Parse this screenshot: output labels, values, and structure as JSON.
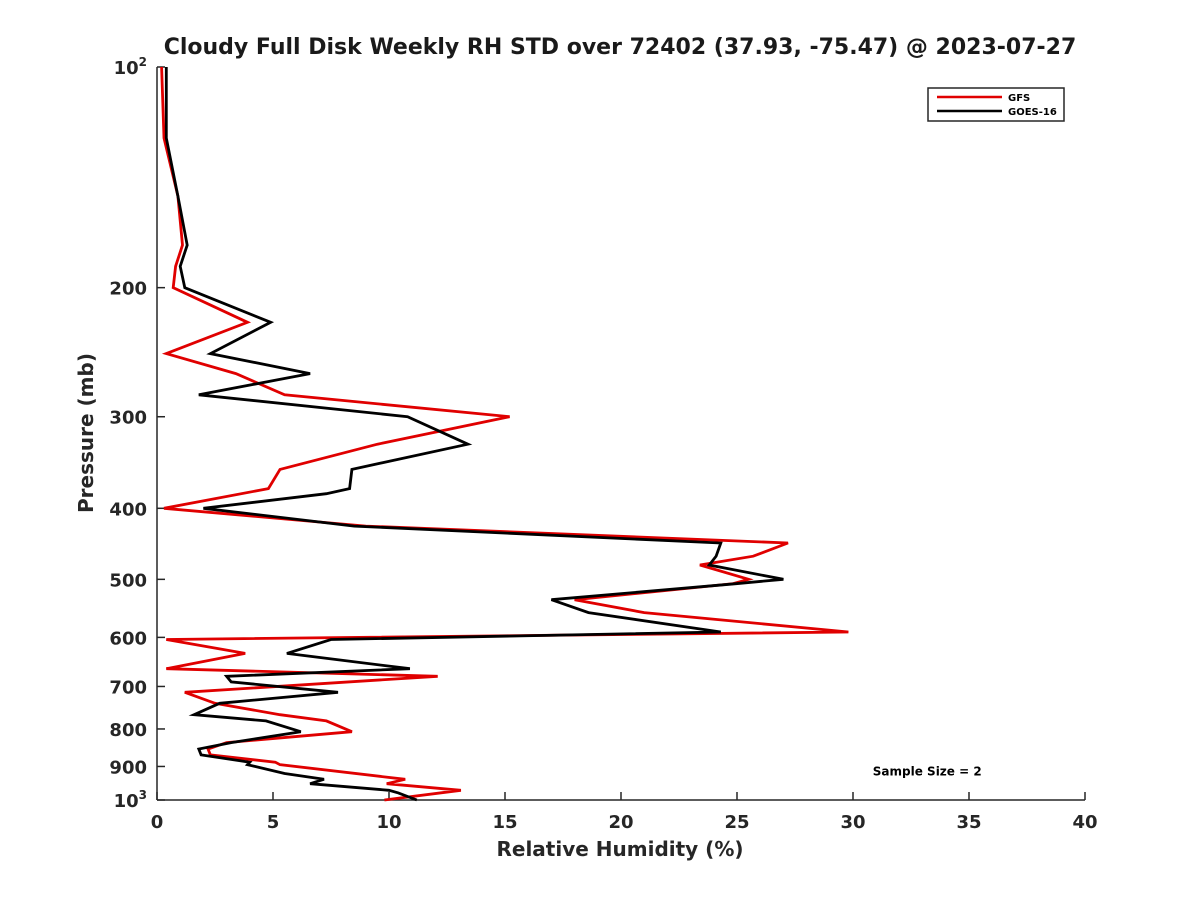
{
  "chart_data": {
    "type": "line",
    "title": "Cloudy Full Disk Weekly RH STD over 72402 (37.93, -75.47) @ 2023-07-27",
    "xlabel": "Relative Humidity (%)",
    "ylabel": "Pressure (mb)",
    "xlim": [
      0,
      40
    ],
    "ylim": [
      100,
      1000
    ],
    "y_scale": "log",
    "y_reversed": true,
    "x_ticks": [
      0,
      5,
      10,
      15,
      20,
      25,
      30,
      35,
      40
    ],
    "y_ticks": [
      {
        "value": 100,
        "base": "10",
        "exp": "2"
      },
      {
        "value": 200,
        "label": "200"
      },
      {
        "value": 300,
        "label": "300"
      },
      {
        "value": 400,
        "label": "400"
      },
      {
        "value": 500,
        "label": "500"
      },
      {
        "value": 600,
        "label": "600"
      },
      {
        "value": 700,
        "label": "700"
      },
      {
        "value": 800,
        "label": "800"
      },
      {
        "value": 900,
        "label": "900"
      },
      {
        "value": 1000,
        "base": "10",
        "exp": "3"
      }
    ],
    "legend_position": "top-right",
    "grid": false,
    "series": [
      {
        "name": "GFS",
        "color": "#e00000",
        "points": [
          [
            0.2,
            100
          ],
          [
            0.3,
            125
          ],
          [
            0.9,
            150
          ],
          [
            1.1,
            175
          ],
          [
            0.8,
            187
          ],
          [
            0.7,
            200
          ],
          [
            3.9,
            223
          ],
          [
            0.4,
            246
          ],
          [
            3.4,
            262
          ],
          [
            5.5,
            280
          ],
          [
            15.2,
            300
          ],
          [
            9.5,
            327
          ],
          [
            5.3,
            354
          ],
          [
            4.8,
            376
          ],
          [
            0.3,
            400
          ],
          [
            9.0,
            423
          ],
          [
            27.2,
            446
          ],
          [
            25.7,
            465
          ],
          [
            23.4,
            478
          ],
          [
            25.5,
            500
          ],
          [
            24.8,
            507
          ],
          [
            18.0,
            533
          ],
          [
            21.0,
            555
          ],
          [
            29.8,
            590
          ],
          [
            0.4,
            604
          ],
          [
            3.8,
            631
          ],
          [
            0.4,
            662
          ],
          [
            12.1,
            678
          ],
          [
            1.2,
            713
          ],
          [
            2.5,
            738
          ],
          [
            5.3,
            765
          ],
          [
            7.3,
            780
          ],
          [
            8.4,
            807
          ],
          [
            3.0,
            835
          ],
          [
            2.2,
            852
          ],
          [
            2.3,
            868
          ],
          [
            5.1,
            888
          ],
          [
            5.3,
            895
          ],
          [
            10.7,
            937
          ],
          [
            9.9,
            950
          ],
          [
            13.1,
            970
          ],
          [
            9.8,
            1000
          ]
        ]
      },
      {
        "name": "GOES-16",
        "color": "#000000",
        "points": [
          [
            0.4,
            100
          ],
          [
            0.4,
            125
          ],
          [
            0.9,
            150
          ],
          [
            1.3,
            175
          ],
          [
            1.0,
            187
          ],
          [
            1.2,
            200
          ],
          [
            4.9,
            223
          ],
          [
            2.3,
            246
          ],
          [
            6.6,
            262
          ],
          [
            1.8,
            280
          ],
          [
            10.8,
            300
          ],
          [
            13.4,
            327
          ],
          [
            8.4,
            354
          ],
          [
            8.3,
            376
          ],
          [
            7.3,
            382
          ],
          [
            2.0,
            400
          ],
          [
            8.5,
            423
          ],
          [
            24.3,
            446
          ],
          [
            24.1,
            465
          ],
          [
            23.8,
            478
          ],
          [
            27.0,
            500
          ],
          [
            24.9,
            507
          ],
          [
            17.0,
            533
          ],
          [
            18.6,
            555
          ],
          [
            24.3,
            590
          ],
          [
            7.5,
            604
          ],
          [
            5.6,
            631
          ],
          [
            10.9,
            662
          ],
          [
            3.0,
            678
          ],
          [
            3.2,
            690
          ],
          [
            7.8,
            713
          ],
          [
            2.7,
            738
          ],
          [
            1.6,
            765
          ],
          [
            4.7,
            780
          ],
          [
            6.2,
            807
          ],
          [
            3.2,
            835
          ],
          [
            1.8,
            852
          ],
          [
            1.9,
            868
          ],
          [
            4.0,
            888
          ],
          [
            3.9,
            895
          ],
          [
            5.5,
            920
          ],
          [
            7.2,
            937
          ],
          [
            6.6,
            950
          ],
          [
            10.0,
            970
          ],
          [
            10.4,
            978
          ],
          [
            11.2,
            1000
          ]
        ]
      }
    ],
    "annotations": [
      {
        "text": "Sample Size = 2",
        "x": 33.2,
        "y": 915
      }
    ]
  }
}
